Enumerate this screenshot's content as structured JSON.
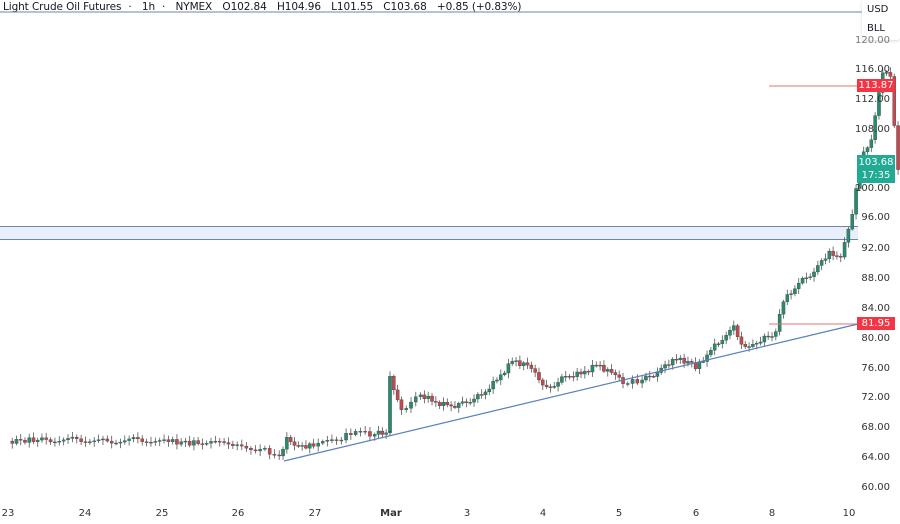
{
  "header": {
    "symbol_name": "Light Crude Oil Futures",
    "interval": "1h",
    "exchange": "NYMEX",
    "open": "O102.84",
    "high": "H104.96",
    "low": "L101.55",
    "close": "C103.68",
    "change": "+0.85 (+0.83%)"
  },
  "currency_menu": {
    "currency": "USD",
    "unit": "BLL"
  },
  "price_tags": {
    "level_high": "113.87",
    "level_low": "81.95",
    "last_price": "103.68",
    "countdown": "17:35"
  },
  "colors": {
    "up": "#26a69a",
    "up_body": "#2a8a6f",
    "down": "#c2494f",
    "level_line": "#e57373",
    "trendline": "#5b7fbf",
    "tag_red": "#f23645",
    "tag_green": "#22ab94",
    "break_band": "#e8eefa",
    "break_border": "#6f86ad"
  },
  "chart_data": {
    "type": "candlestick",
    "title": "Light Crude Oil Futures · 1h · NYMEX",
    "ohlc_latest": {
      "open": 102.84,
      "high": 104.96,
      "low": 101.55,
      "close": 103.68,
      "change": 0.85,
      "change_pct": 0.83
    },
    "x_ticks": [
      "23",
      "24",
      "25",
      "26",
      "27",
      "Mar",
      "3",
      "4",
      "5",
      "6",
      "8",
      "10"
    ],
    "y_ticks_upper": [
      "120.00",
      "116.00",
      "112.00",
      "108.00",
      "100.00",
      "96.00"
    ],
    "y_ticks_lower": [
      "92.00",
      "88.00",
      "84.00",
      "80.00",
      "76.00",
      "72.00",
      "68.00",
      "64.00",
      "60.00"
    ],
    "horizontal_levels": [
      113.87,
      81.95
    ],
    "trendline": {
      "from": {
        "x": "26 (late)",
        "y": 64.0
      },
      "to": {
        "x": "10",
        "y": 81.95
      }
    },
    "approx_closes": [
      {
        "x": "23",
        "y": 66.2
      },
      {
        "x": "24",
        "y": 66.4
      },
      {
        "x": "25",
        "y": 66.3
      },
      {
        "x": "26",
        "y": 65.6
      },
      {
        "x": "26.5",
        "y": 64.3
      },
      {
        "x": "26.7",
        "y": 66.8
      },
      {
        "x": "27",
        "y": 65.8
      },
      {
        "x": "27.5",
        "y": 67.4
      },
      {
        "x": "Mar (open)",
        "y": 74.9
      },
      {
        "x": "Mar",
        "y": 70.3
      },
      {
        "x": "2",
        "y": 72.5
      },
      {
        "x": "3",
        "y": 71.3
      },
      {
        "x": "3.6",
        "y": 76.6
      },
      {
        "x": "3.9",
        "y": 73.5
      },
      {
        "x": "4",
        "y": 74.8
      },
      {
        "x": "4.4",
        "y": 76.3
      },
      {
        "x": "4.7",
        "y": 73.9
      },
      {
        "x": "5",
        "y": 74.8
      },
      {
        "x": "5.4",
        "y": 77.0
      },
      {
        "x": "5.9",
        "y": 79.0
      },
      {
        "x": "6",
        "y": 79.5
      },
      {
        "x": "6.4",
        "y": 84.2
      },
      {
        "x": "6.8",
        "y": 88.7
      },
      {
        "x": "7",
        "y": 91.1
      },
      {
        "x": "8 (gap)",
        "y": 106.9
      },
      {
        "x": "8.1",
        "y": 115.7
      },
      {
        "x": "8.2",
        "y": 102.5
      },
      {
        "x": "8.4",
        "y": 103.68
      }
    ]
  }
}
